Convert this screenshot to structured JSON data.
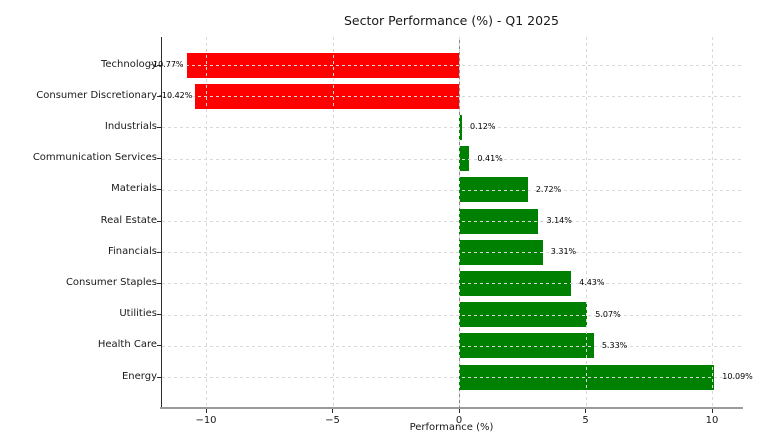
{
  "chart_data": {
    "type": "bar",
    "orientation": "horizontal",
    "title": "Sector Performance (%) - Q1 2025",
    "xlabel": "Performance (%)",
    "categories": [
      "Technology",
      "Consumer Discretionary",
      "Industrials",
      "Communication Services",
      "Materials",
      "Real Estate",
      "Financials",
      "Consumer Staples",
      "Utilities",
      "Health Care",
      "Energy"
    ],
    "values": [
      -10.77,
      -10.42,
      0.12,
      0.41,
      2.72,
      3.14,
      3.31,
      4.43,
      5.07,
      5.33,
      10.09
    ],
    "bar_labels": [
      "-10.77%",
      "-10.42%",
      "0.12%",
      "0.41%",
      "2.72%",
      "3.14%",
      "3.31%",
      "4.43%",
      "5.07%",
      "5.33%",
      "10.09%"
    ],
    "x_ticks": [
      "−10",
      "−5",
      "0",
      "5",
      "10"
    ],
    "x_tick_values": [
      -10,
      -5,
      0,
      5,
      10
    ],
    "xlim": [
      -11.81,
      11.13
    ],
    "grid": true,
    "grid_style": "dashed",
    "legend": false,
    "zero_line": true,
    "colors": {
      "negative_bar": "#ff0000",
      "positive_bar": "#008000",
      "gridline": "#d9d9d9",
      "zero_line": "#8a8a8a",
      "text": "#1a1a1a"
    }
  }
}
